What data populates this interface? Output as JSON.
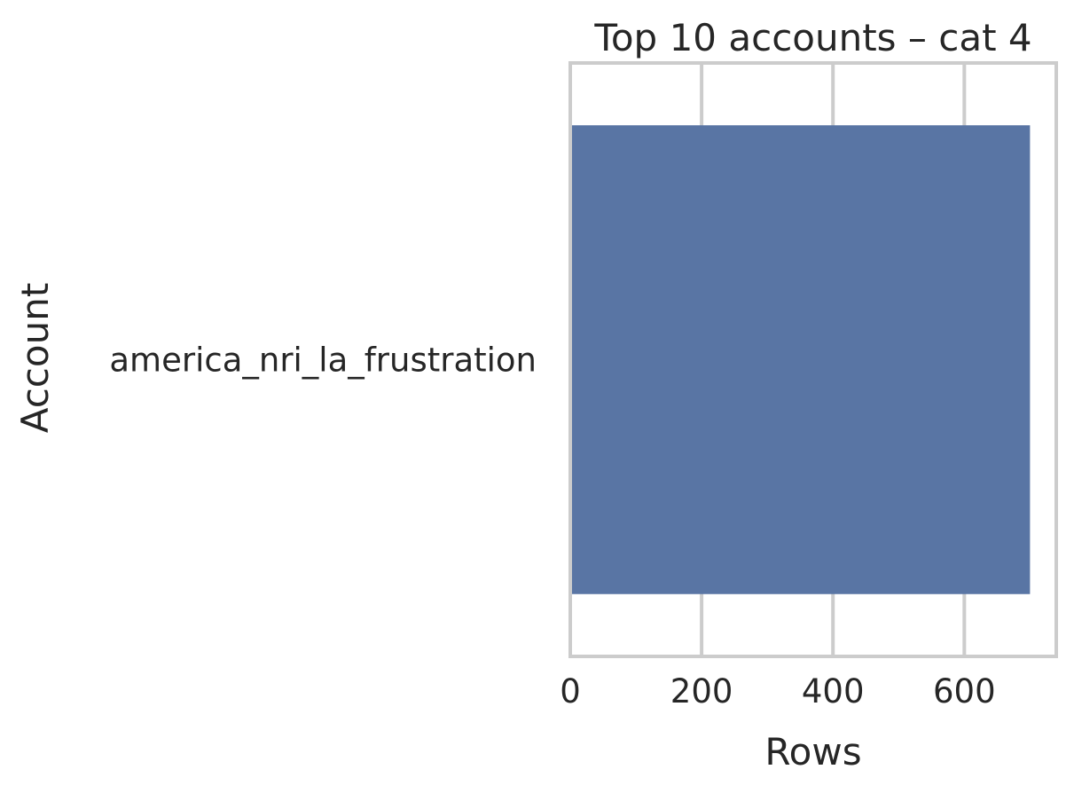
{
  "chart_data": {
    "type": "bar",
    "orientation": "horizontal",
    "title": "Top 10 accounts – cat 4",
    "xlabel": "Rows",
    "ylabel": "Account",
    "categories": [
      "america_nri_la_frustration"
    ],
    "values": [
      700
    ],
    "xlim": [
      0,
      740
    ],
    "xticks": [
      0,
      200,
      400,
      600
    ],
    "grid": "vertical",
    "bar_color": "#5975a4",
    "grid_color": "#cccccc",
    "text_color": "#262626"
  }
}
